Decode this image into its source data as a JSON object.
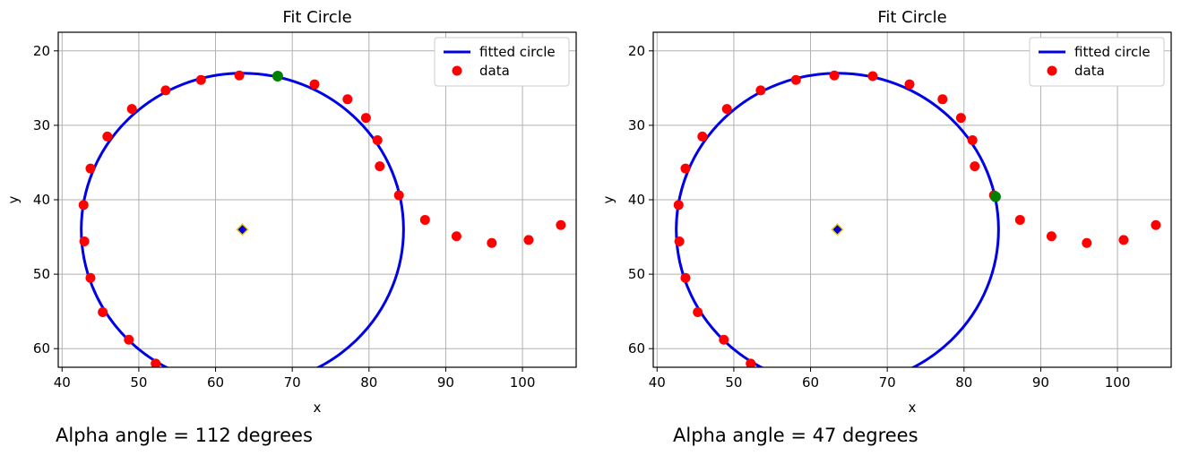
{
  "chart_data": [
    {
      "type": "scatter",
      "title": "Fit Circle",
      "xlabel": "x",
      "ylabel": "y",
      "xlim": [
        39.5,
        107
      ],
      "ylim": [
        62.5,
        17.5
      ],
      "y_inverted": true,
      "xticks": [
        40,
        50,
        60,
        70,
        80,
        90,
        100
      ],
      "yticks": [
        20,
        30,
        40,
        50,
        60
      ],
      "grid": true,
      "legend_position": "top-right",
      "legend": [
        "fitted circle",
        "data"
      ],
      "colors": {
        "circle": "#0000e6",
        "data": "#ff0000",
        "highlight": "#008000",
        "center": "#0000cc",
        "center_edge": "#f2c200"
      },
      "series": [
        {
          "name": "data",
          "marker": "circle",
          "x": [
            52.2,
            48.7,
            45.3,
            43.7,
            42.9,
            42.8,
            43.7,
            45.9,
            49.1,
            53.5,
            58.1,
            63.1,
            68.1,
            72.9,
            77.2,
            79.6,
            81.1,
            81.4,
            83.9,
            87.3,
            91.4,
            96.0,
            100.8,
            105.0
          ],
          "y": [
            62.0,
            58.8,
            55.1,
            50.5,
            45.6,
            40.7,
            35.8,
            31.5,
            27.8,
            25.3,
            23.9,
            23.3,
            23.4,
            24.5,
            26.5,
            29.0,
            32.0,
            35.5,
            39.4,
            42.7,
            44.9,
            45.8,
            45.4,
            43.4
          ]
        },
        {
          "name": "fitted circle",
          "shape": "circle",
          "center": [
            63.5,
            44.0
          ],
          "radius": 21.0
        }
      ],
      "highlight_point": {
        "x": 68.1,
        "y": 23.4
      },
      "center_point": {
        "x": 63.5,
        "y": 44.0
      },
      "caption": "Alpha angle = 112 degrees"
    },
    {
      "type": "scatter",
      "title": "Fit Circle",
      "xlabel": "x",
      "ylabel": "y",
      "xlim": [
        39.5,
        107
      ],
      "ylim": [
        62.5,
        17.5
      ],
      "y_inverted": true,
      "xticks": [
        40,
        50,
        60,
        70,
        80,
        90,
        100
      ],
      "yticks": [
        20,
        30,
        40,
        50,
        60
      ],
      "grid": true,
      "legend_position": "top-right",
      "legend": [
        "fitted circle",
        "data"
      ],
      "colors": {
        "circle": "#0000e6",
        "data": "#ff0000",
        "highlight": "#008000",
        "center": "#0000cc",
        "center_edge": "#f2c200"
      },
      "series": [
        {
          "name": "data",
          "marker": "circle",
          "x": [
            52.2,
            48.7,
            45.3,
            43.7,
            42.9,
            42.8,
            43.7,
            45.9,
            49.1,
            53.5,
            58.1,
            63.1,
            68.1,
            72.9,
            77.2,
            79.6,
            81.1,
            81.4,
            83.9,
            87.3,
            91.4,
            96.0,
            100.8,
            105.0
          ],
          "y": [
            62.0,
            58.8,
            55.1,
            50.5,
            45.6,
            40.7,
            35.8,
            31.5,
            27.8,
            25.3,
            23.9,
            23.3,
            23.4,
            24.5,
            26.5,
            29.0,
            32.0,
            35.5,
            39.4,
            42.7,
            44.9,
            45.8,
            45.4,
            43.4
          ]
        },
        {
          "name": "fitted circle",
          "shape": "circle",
          "center": [
            63.5,
            44.0
          ],
          "radius": 21.0
        }
      ],
      "highlight_point": {
        "x": 84.1,
        "y": 39.6
      },
      "center_point": {
        "x": 63.5,
        "y": 44.0
      },
      "caption": "Alpha angle = 47 degrees"
    }
  ]
}
